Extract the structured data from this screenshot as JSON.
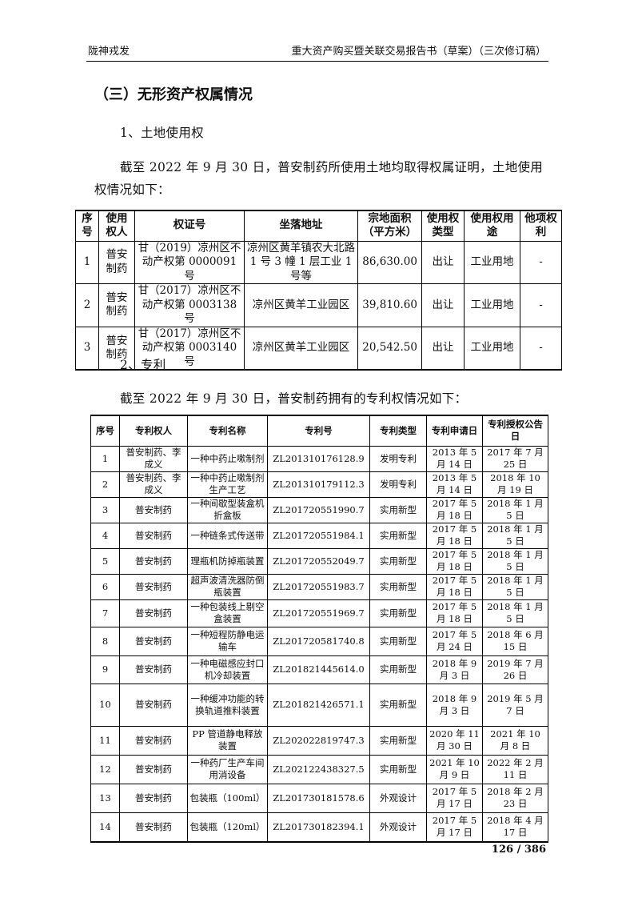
{
  "header": {
    "left": "陇神戎发",
    "right": "重大资产购买暨关联交易报告书（草案）（三次修订稿）"
  },
  "section_title": "（三）无形资产权属情况",
  "land": {
    "subtitle": "1、土地使用权",
    "intro_line1": "截至 2022 年 9 月 30 日，普安制药所使用土地均取得权属证明，土地使用",
    "intro_line2": "权情况如下：",
    "columns": [
      "序号",
      "使用权人",
      "权证号",
      "坐落地址",
      "宗地面积（平方米）",
      "使用权类型",
      "使用权用途",
      "他项权利"
    ],
    "rows": [
      [
        "1",
        "普安制药",
        "甘（2019）凉州区不动产权第 0000091 号",
        "凉州区黄羊镇农大北路 1 号 3 幢 1 层工业 1 号等",
        "86,630.00",
        "出让",
        "工业用地",
        "-"
      ],
      [
        "2",
        "普安制药",
        "甘（2017）凉州区不动产权第 0003138 号",
        "凉州区黄羊工业园区",
        "39,810.60",
        "出让",
        "工业用地",
        "-"
      ],
      [
        "3",
        "普安制药",
        "甘（2017）凉州区不动产权第 0003140 号",
        "凉州区黄羊工业园区",
        "20,542.50",
        "出让",
        "工业用地",
        "-"
      ]
    ]
  },
  "patent": {
    "subtitle": "2、专利",
    "intro": "截至 2022 年 9 月 30 日，普安制药拥有的专利权情况如下：",
    "columns": [
      "序号",
      "专利权人",
      "专利名称",
      "专利号",
      "专利类型",
      "专利申请日",
      "专利授权公告日"
    ],
    "rows": [
      [
        "1",
        "普安制药、李成义",
        "一种中药止嗽制剂",
        "ZL201310176128.9",
        "发明专利",
        "2013 年 5 月 14 日",
        "2017 年 7 月 25 日"
      ],
      [
        "2",
        "普安制药、李成义",
        "一种中药止嗽制剂生产工艺",
        "ZL201310179112.3",
        "发明专利",
        "2013 年 5 月 14 日",
        "2018 年 10 月 19 日"
      ],
      [
        "3",
        "普安制药",
        "一种间歇型装盒机折盒板",
        "ZL201720551990.7",
        "实用新型",
        "2017 年 5 月 18 日",
        "2018 年 1 月 5 日"
      ],
      [
        "4",
        "普安制药",
        "一种链条式传送带",
        "ZL201720551984.1",
        "实用新型",
        "2017 年 5 月 18 日",
        "2018 年 1 月 5 日"
      ],
      [
        "5",
        "普安制药",
        "理瓶机防掉瓶装置",
        "ZL201720552049.7",
        "实用新型",
        "2017 年 5 月 18 日",
        "2018 年 1 月 5 日"
      ],
      [
        "6",
        "普安制药",
        "超声波清洗器防倒瓶装置",
        "ZL201720551983.7",
        "实用新型",
        "2017 年 5 月 18 日",
        "2018 年 1 月 5 日"
      ],
      [
        "7",
        "普安制药",
        "一种包装线上剔空盒装置",
        "ZL201720551969.7",
        "实用新型",
        "2017 年 5 月 18 日",
        "2018 年 1 月 5 日"
      ],
      [
        "8",
        "普安制药",
        "一种短程防静电运输车",
        "ZL201720581740.8",
        "实用新型",
        "2017 年 5 月 24 日",
        "2018 年 6 月 15 日"
      ],
      [
        "9",
        "普安制药",
        "一种电磁感应封口机冷却装置",
        "ZL201821445614.0",
        "实用新型",
        "2018 年 9 月 3 日",
        "2019 年 7 月 26 日"
      ],
      [
        "10",
        "普安制药",
        "一种缓冲功能的转换轨道推料装置",
        "ZL201821426571.1",
        "实用新型",
        "2018 年 9 月 3 日",
        "2019 年 5 月 7 日"
      ],
      [
        "11",
        "普安制药",
        "PP 管道静电释放装置",
        "ZL202022819747.3",
        "实用新型",
        "2020 年 11 月 30 日",
        "2021 年 10 月 8 日"
      ],
      [
        "12",
        "普安制药",
        "一种药厂生产车间用消设备",
        "ZL202122438327.5",
        "实用新型",
        "2021 年 10 月 9 日",
        "2022 年 2 月 11 日"
      ],
      [
        "13",
        "普安制药",
        "包装瓶（100ml）",
        "ZL201730181578.6",
        "外观设计",
        "2017 年 5 月 17 日",
        "2018 年 2 月 23 日"
      ],
      [
        "14",
        "普安制药",
        "包装瓶（120ml）",
        "ZL201730182394.1",
        "外观设计",
        "2017 年 5 月 17 日",
        "2018 年 4 月 17 日"
      ]
    ]
  },
  "page_number": "126 / 386"
}
